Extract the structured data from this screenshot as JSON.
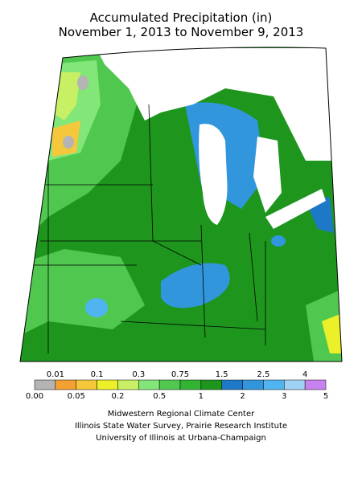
{
  "header": {
    "title": "Accumulated Precipitation (in)",
    "subtitle": "November 1, 2013 to November 9, 2013"
  },
  "legend": {
    "labels": [
      "0.00",
      "0.01",
      "0.05",
      "0.1",
      "0.2",
      "0.3",
      "0.5",
      "0.75",
      "1",
      "1.5",
      "2",
      "2.5",
      "3",
      "4",
      "5"
    ],
    "colors": [
      "#b4b4b4",
      "#f5a032",
      "#f5c83c",
      "#ebf028",
      "#c8f064",
      "#82e678",
      "#50c850",
      "#32b432",
      "#1e961e",
      "#1e78c8",
      "#3296dc",
      "#50b4f0",
      "#a0d2f5",
      "#c882f0"
    ]
  },
  "credits": [
    "Midwestern Regional Climate Center",
    "Illinois State Water Survey, Prairie Research Institute",
    "University of Illinois at Urbana-Champaign"
  ]
}
